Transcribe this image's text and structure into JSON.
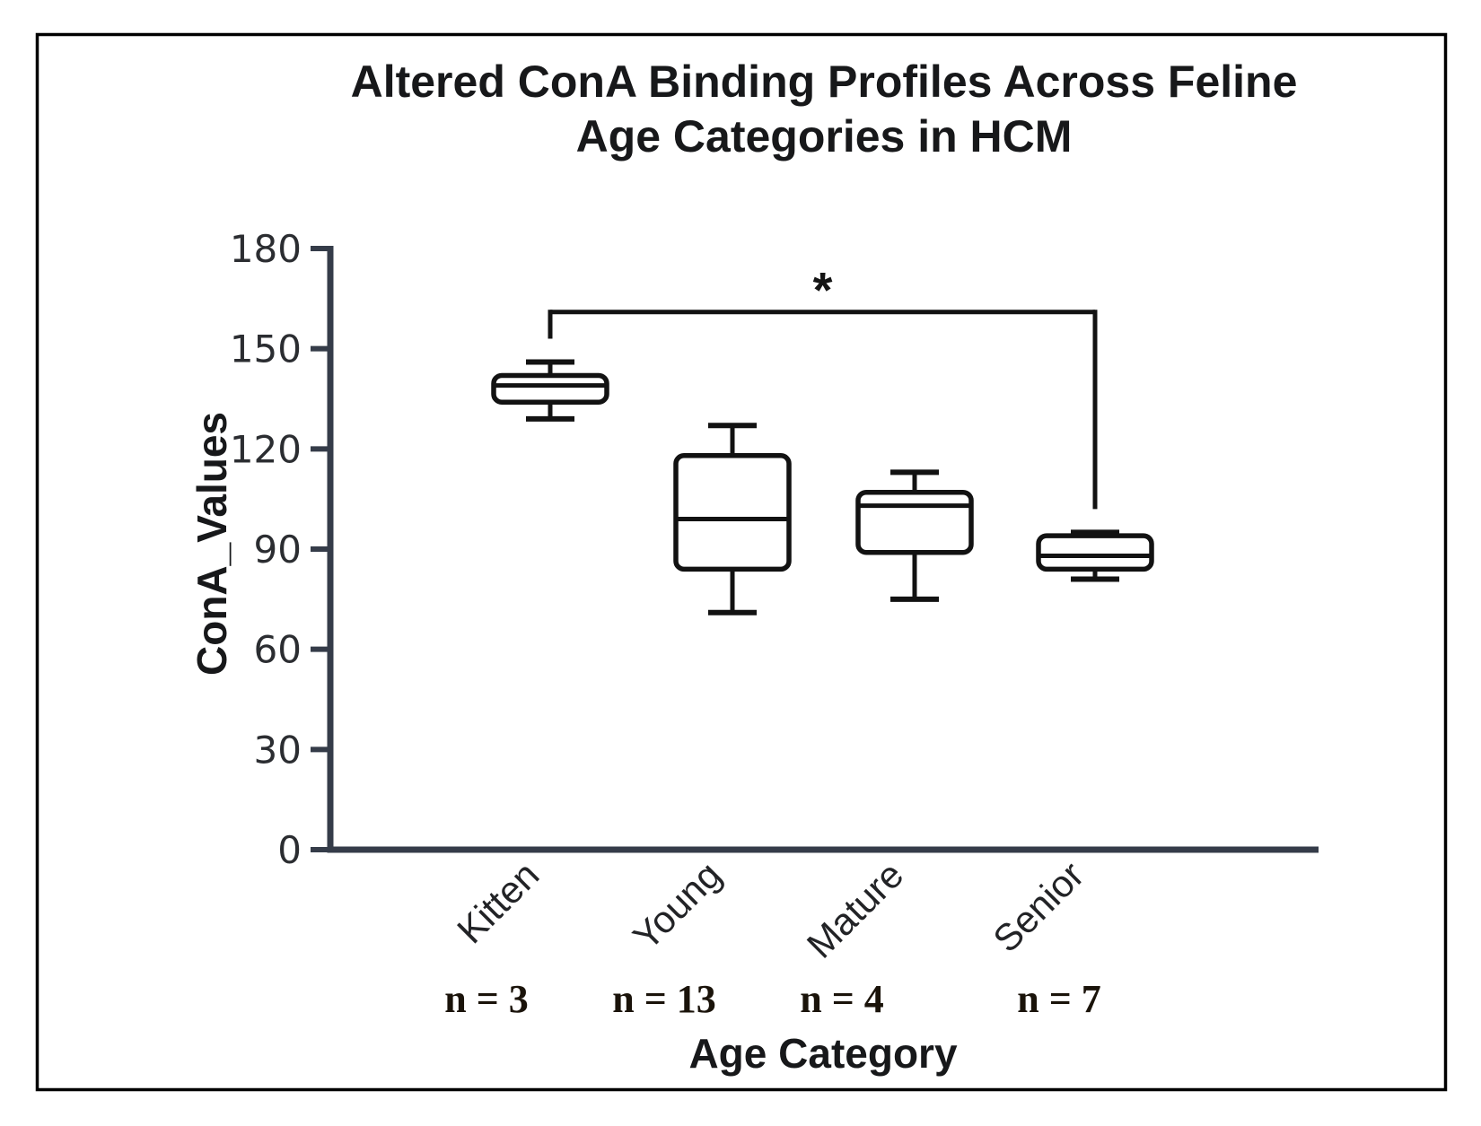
{
  "figure": {
    "title_line1": "Altered ConA Binding Profiles Across Feline",
    "title_line2": "Age Categories in HCM",
    "y_axis_label": "ConA_Values",
    "x_axis_label": "Age Category"
  },
  "chart_data": {
    "type": "boxplot",
    "title": "Altered ConA Binding Profiles Across Feline Age Categories in HCM",
    "xlabel": "Age Category",
    "ylabel": "ConA_Values",
    "ylim": [
      0,
      180
    ],
    "yticks": [
      0,
      30,
      60,
      90,
      120,
      150,
      180
    ],
    "grid": "off",
    "categories": [
      "Kitten",
      "Young",
      "Mature",
      "Senior"
    ],
    "sample_size_labels": [
      "n = 3",
      "n = 13",
      "n = 4",
      "n = 7"
    ],
    "series": [
      {
        "name": "Kitten",
        "n": 3,
        "whisker_low": 129,
        "q1": 134,
        "median": 139,
        "q3": 142,
        "whisker_high": 146
      },
      {
        "name": "Young",
        "n": 13,
        "whisker_low": 71,
        "q1": 84,
        "median": 99,
        "q3": 118,
        "whisker_high": 127
      },
      {
        "name": "Mature",
        "n": 4,
        "whisker_low": 75,
        "q1": 89,
        "median": 103,
        "q3": 107,
        "whisker_high": 113
      },
      {
        "name": "Senior",
        "n": 7,
        "whisker_low": 81,
        "q1": 84,
        "median": 88,
        "q3": 94,
        "whisker_high": 95
      }
    ],
    "significance": {
      "label": "*",
      "from": "Kitten",
      "to": "Senior",
      "bar_value": 161,
      "left_drop_to_value": 153,
      "right_drop_to_value": 102
    },
    "colors": {
      "background": "#ffffff",
      "frame": "#000000",
      "axis": "#353c49",
      "box_stroke": "#121212",
      "box_fill": "#ffffff",
      "text": "#1a1a1a"
    }
  }
}
